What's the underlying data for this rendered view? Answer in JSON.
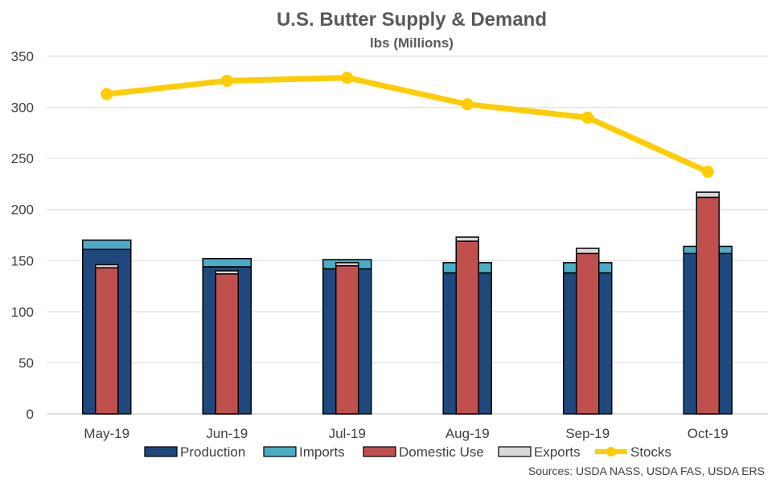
{
  "chart_data": {
    "type": "bar",
    "title": "U.S. Butter Supply & Demand",
    "subtitle": "lbs (Millions)",
    "source": "Sources: USDA NASS, USDA FAS, USDA ERS",
    "categories": [
      "May-19",
      "Jun-19",
      "Jul-19",
      "Aug-19",
      "Sep-19",
      "Oct-19"
    ],
    "ylim": [
      0,
      350
    ],
    "yticks": [
      0,
      50,
      100,
      150,
      200,
      250,
      300,
      350
    ],
    "grid": true,
    "legend_position": "bottom",
    "series": [
      {
        "name": "Production",
        "kind": "stacked-bar-supply",
        "color": "#1F497D",
        "values": [
          161,
          144,
          142,
          138,
          138,
          157
        ]
      },
      {
        "name": "Imports",
        "kind": "stacked-bar-supply",
        "color": "#4BACC6",
        "values": [
          9,
          8,
          9,
          10,
          10,
          7
        ]
      },
      {
        "name": "Domestic Use",
        "kind": "stacked-bar-demand",
        "color": "#C0504D",
        "values": [
          143,
          137,
          145,
          169,
          157,
          212
        ]
      },
      {
        "name": "Exports",
        "kind": "stacked-bar-demand",
        "color": "#D9D9D9",
        "values": [
          3,
          3,
          3,
          4,
          5,
          5
        ]
      },
      {
        "name": "Stocks",
        "kind": "line",
        "color": "#FFCC00",
        "values": [
          313,
          326,
          329,
          303,
          290,
          237
        ]
      }
    ]
  }
}
